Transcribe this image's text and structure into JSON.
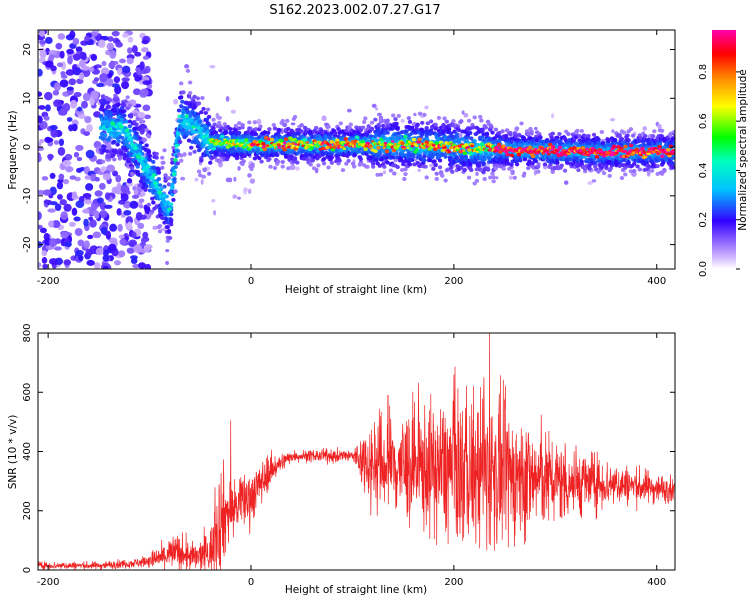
{
  "title": "S162.2023.002.07.27.G17",
  "colors": {
    "signal": "#ee2222",
    "axis": "#000000"
  },
  "chart_data": [
    {
      "type": "heatmap",
      "title": "S162.2023.002.07.27.G17",
      "xlabel": "Height of straight line (km)",
      "ylabel": "Frequency (Hz)",
      "xlim": [
        -210,
        418
      ],
      "ylim": [
        -25,
        24
      ],
      "xticks": [
        "-200",
        "0",
        "200",
        "400"
      ],
      "yticks": [
        "-20",
        "-10",
        "0",
        "10",
        "20"
      ],
      "colorbar": {
        "label": "Normalized spectral amplitude",
        "range": [
          0,
          0.97
        ],
        "ticks": [
          "0.0",
          "0.2",
          "0.4",
          "0.6",
          "0.8"
        ]
      },
      "ridge": [
        {
          "x": -145,
          "y": 4
        },
        {
          "x": -125,
          "y": 4
        },
        {
          "x": -110,
          "y": -2
        },
        {
          "x": -95,
          "y": -7
        },
        {
          "x": -80,
          "y": -13
        },
        {
          "x": -70,
          "y": 6
        },
        {
          "x": -55,
          "y": 4
        },
        {
          "x": -40,
          "y": 1
        },
        {
          "x": 0,
          "y": 0.5
        },
        {
          "x": 50,
          "y": 0.5
        },
        {
          "x": 100,
          "y": 0.5
        },
        {
          "x": 150,
          "y": 0.5
        },
        {
          "x": 200,
          "y": 0
        },
        {
          "x": 250,
          "y": -0.5
        },
        {
          "x": 300,
          "y": -0.8
        },
        {
          "x": 350,
          "y": -1
        },
        {
          "x": 418,
          "y": -1
        }
      ]
    },
    {
      "type": "line",
      "xlabel": "Height of straight line (km)",
      "ylabel": "SNR (10 * v/v)",
      "xlim": [
        -210,
        418
      ],
      "ylim": [
        0,
        800
      ],
      "xticks": [
        "-200",
        "0",
        "200",
        "400"
      ],
      "yticks": [
        "0",
        "200",
        "400",
        "600",
        "800"
      ],
      "envelope": [
        {
          "x": -210,
          "mean": 15,
          "amp": 8
        },
        {
          "x": -150,
          "mean": 15,
          "amp": 8
        },
        {
          "x": -110,
          "mean": 25,
          "amp": 10
        },
        {
          "x": -90,
          "mean": 40,
          "amp": 25
        },
        {
          "x": -75,
          "mean": 60,
          "amp": 40
        },
        {
          "x": -55,
          "mean": 40,
          "amp": 30
        },
        {
          "x": -40,
          "mean": 60,
          "amp": 50
        },
        {
          "x": -30,
          "mean": 180,
          "amp": 120
        },
        {
          "x": -20,
          "mean": 200,
          "amp": 60
        },
        {
          "x": 0,
          "mean": 250,
          "amp": 60
        },
        {
          "x": 20,
          "mean": 340,
          "amp": 30
        },
        {
          "x": 40,
          "mean": 385,
          "amp": 12
        },
        {
          "x": 100,
          "mean": 385,
          "amp": 15
        },
        {
          "x": 120,
          "mean": 360,
          "amp": 100
        },
        {
          "x": 180,
          "mean": 340,
          "amp": 140
        },
        {
          "x": 230,
          "mean": 330,
          "amp": 170
        },
        {
          "x": 300,
          "mean": 300,
          "amp": 90
        },
        {
          "x": 360,
          "mean": 290,
          "amp": 45
        },
        {
          "x": 418,
          "mean": 270,
          "amp": 25
        }
      ],
      "peaks": [
        {
          "x": -20,
          "y": 505
        },
        {
          "x": 235,
          "y": 800
        },
        {
          "x": 200,
          "y": 660
        },
        {
          "x": 135,
          "y": 590
        }
      ]
    }
  ]
}
